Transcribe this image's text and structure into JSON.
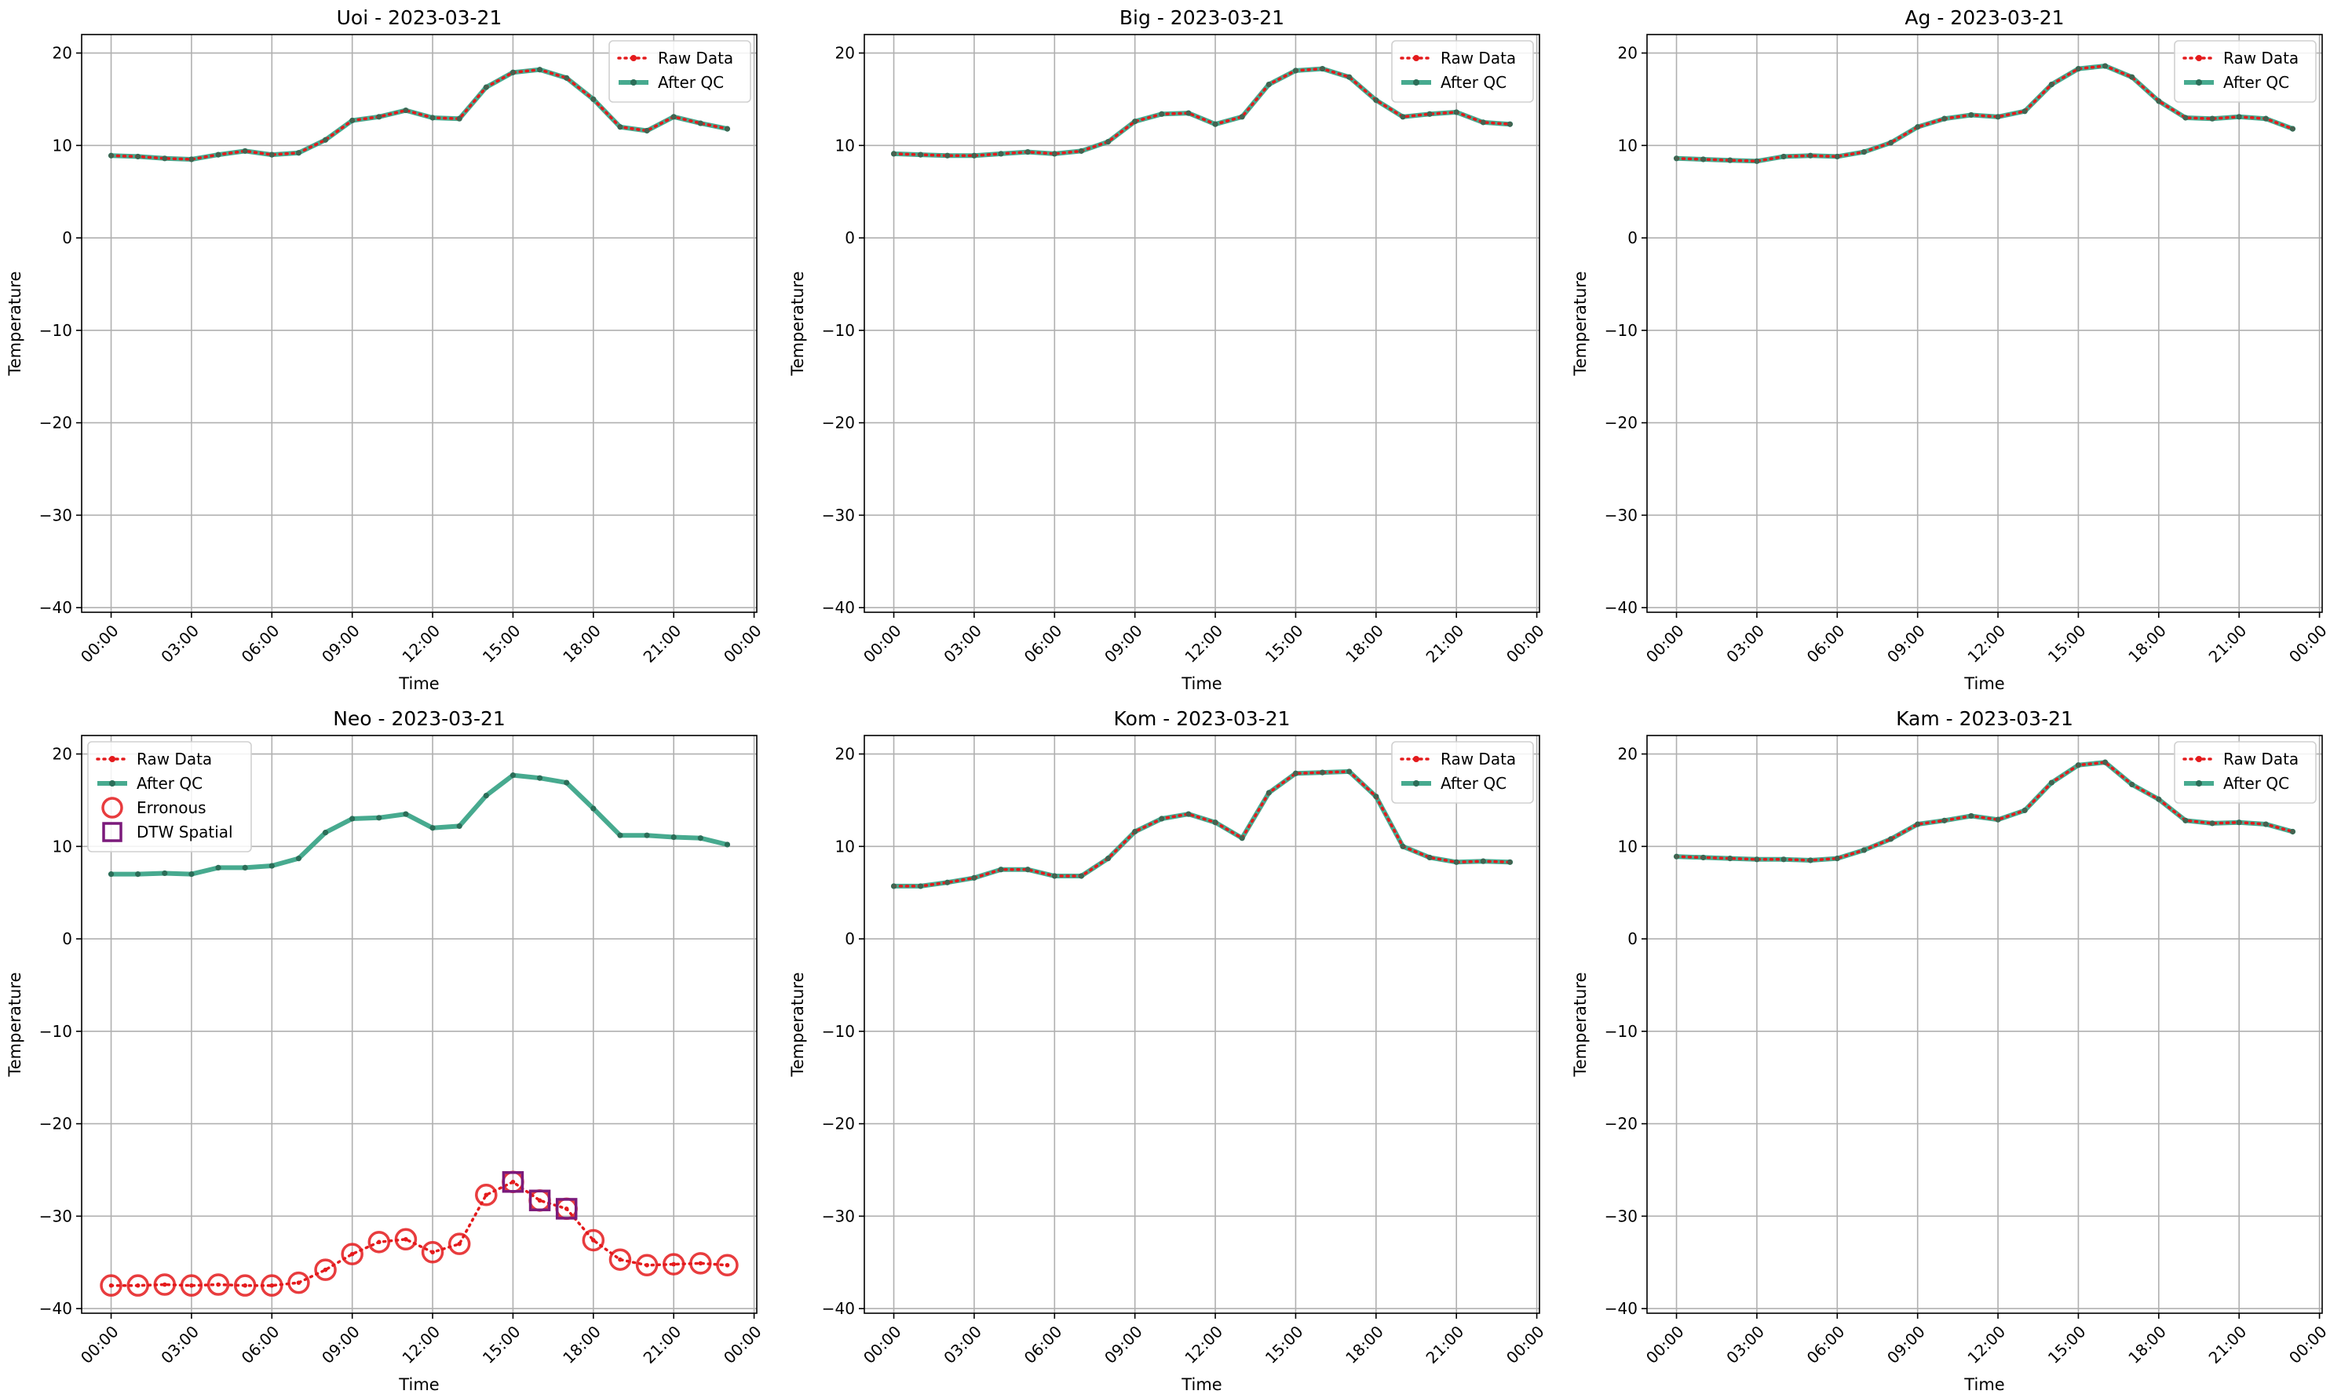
{
  "figure": {
    "background": "#ffffff",
    "colors": {
      "raw": "#e41a1c",
      "qc": "#2e9e80",
      "qc_marker": "#2b6e58",
      "erroneous": "#e41a1c",
      "dtw": "#7b1a7b",
      "grid": "#b0b0b0"
    }
  },
  "chart_data": [
    {
      "type": "line",
      "title": "Uoi - 2023-03-21",
      "xlabel": "Time",
      "ylabel": "Temperature",
      "x_ticks": [
        "00:00",
        "03:00",
        "06:00",
        "09:00",
        "12:00",
        "15:00",
        "18:00",
        "21:00",
        "00:00"
      ],
      "y_ticks": [
        20,
        10,
        0,
        -10,
        -20,
        -30,
        -40
      ],
      "ylim": [
        -40.5,
        22
      ],
      "grid": true,
      "legend": {
        "position": "top-right",
        "entries": [
          "Raw Data",
          "After QC"
        ]
      },
      "series": [
        {
          "name": "Raw Data",
          "style": "dotted",
          "values": [
            8.9,
            8.8,
            8.6,
            8.5,
            9.0,
            9.4,
            9.0,
            9.2,
            10.6,
            12.7,
            13.1,
            13.8,
            13.0,
            12.9,
            16.3,
            17.9,
            18.2,
            17.3,
            15.0,
            12.0,
            11.6,
            13.1,
            12.4,
            11.8
          ]
        },
        {
          "name": "After QC",
          "style": "solid",
          "values": [
            8.9,
            8.8,
            8.6,
            8.5,
            9.0,
            9.4,
            9.0,
            9.2,
            10.6,
            12.7,
            13.1,
            13.8,
            13.0,
            12.9,
            16.3,
            17.9,
            18.2,
            17.3,
            15.0,
            12.0,
            11.6,
            13.1,
            12.4,
            11.8
          ]
        }
      ]
    },
    {
      "type": "line",
      "title": "Big - 2023-03-21",
      "xlabel": "Time",
      "ylabel": "Temperature",
      "x_ticks": [
        "00:00",
        "03:00",
        "06:00",
        "09:00",
        "12:00",
        "15:00",
        "18:00",
        "21:00",
        "00:00"
      ],
      "y_ticks": [
        20,
        10,
        0,
        -10,
        -20,
        -30,
        -40
      ],
      "ylim": [
        -40.5,
        22
      ],
      "grid": true,
      "legend": {
        "position": "top-right",
        "entries": [
          "Raw Data",
          "After QC"
        ]
      },
      "series": [
        {
          "name": "Raw Data",
          "style": "dotted",
          "values": [
            9.1,
            9.0,
            8.9,
            8.9,
            9.1,
            9.3,
            9.1,
            9.4,
            10.4,
            12.6,
            13.4,
            13.5,
            12.3,
            13.1,
            16.6,
            18.1,
            18.3,
            17.4,
            14.9,
            13.1,
            13.4,
            13.6,
            12.5,
            12.3
          ]
        },
        {
          "name": "After QC",
          "style": "solid",
          "values": [
            9.1,
            9.0,
            8.9,
            8.9,
            9.1,
            9.3,
            9.1,
            9.4,
            10.4,
            12.6,
            13.4,
            13.5,
            12.3,
            13.1,
            16.6,
            18.1,
            18.3,
            17.4,
            14.9,
            13.1,
            13.4,
            13.6,
            12.5,
            12.3
          ]
        }
      ]
    },
    {
      "type": "line",
      "title": "Ag - 2023-03-21",
      "xlabel": "Time",
      "ylabel": "Temperature",
      "x_ticks": [
        "00:00",
        "03:00",
        "06:00",
        "09:00",
        "12:00",
        "15:00",
        "18:00",
        "21:00",
        "00:00"
      ],
      "y_ticks": [
        20,
        10,
        0,
        -10,
        -20,
        -30,
        -40
      ],
      "ylim": [
        -40.5,
        22
      ],
      "grid": true,
      "legend": {
        "position": "top-right",
        "entries": [
          "Raw Data",
          "After QC"
        ]
      },
      "series": [
        {
          "name": "Raw Data",
          "style": "dotted",
          "values": [
            8.6,
            8.5,
            8.4,
            8.3,
            8.8,
            8.9,
            8.8,
            9.3,
            10.3,
            12.0,
            12.9,
            13.3,
            13.1,
            13.7,
            16.6,
            18.3,
            18.6,
            17.4,
            14.8,
            13.0,
            12.9,
            13.1,
            12.9,
            11.8
          ]
        },
        {
          "name": "After QC",
          "style": "solid",
          "values": [
            8.6,
            8.5,
            8.4,
            8.3,
            8.8,
            8.9,
            8.8,
            9.3,
            10.3,
            12.0,
            12.9,
            13.3,
            13.1,
            13.7,
            16.6,
            18.3,
            18.6,
            17.4,
            14.8,
            13.0,
            12.9,
            13.1,
            12.9,
            11.8
          ]
        }
      ]
    },
    {
      "type": "line",
      "title": "Neo - 2023-03-21",
      "xlabel": "Time",
      "ylabel": "Temperature",
      "x_ticks": [
        "00:00",
        "03:00",
        "06:00",
        "09:00",
        "12:00",
        "15:00",
        "18:00",
        "21:00",
        "00:00"
      ],
      "y_ticks": [
        20,
        10,
        0,
        -10,
        -20,
        -30,
        -40
      ],
      "ylim": [
        -40.5,
        22
      ],
      "grid": true,
      "legend": {
        "position": "top-left",
        "entries": [
          "Raw Data",
          "After QC",
          "Erronous",
          "DTW Spatial"
        ]
      },
      "series": [
        {
          "name": "Raw Data",
          "style": "dotted",
          "values": [
            -37.5,
            -37.5,
            -37.4,
            -37.5,
            -37.4,
            -37.5,
            -37.5,
            -37.2,
            -35.8,
            -34.1,
            -32.8,
            -32.5,
            -33.9,
            -33.0,
            -27.7,
            -26.3,
            -28.3,
            -29.2,
            -32.6,
            -34.7,
            -35.3,
            -35.2,
            -35.1,
            -35.3
          ]
        },
        {
          "name": "After QC",
          "style": "solid",
          "values": [
            7.0,
            7.0,
            7.1,
            7.0,
            7.7,
            7.7,
            7.9,
            8.7,
            11.5,
            13.0,
            13.1,
            13.5,
            12.0,
            12.2,
            15.5,
            17.7,
            17.4,
            16.9,
            14.1,
            11.2,
            11.2,
            11.0,
            10.9,
            10.2
          ]
        },
        {
          "name": "Erronous",
          "style": "circle",
          "indices": [
            0,
            1,
            2,
            3,
            4,
            5,
            6,
            7,
            8,
            9,
            10,
            11,
            12,
            13,
            14,
            15,
            16,
            17,
            18,
            19,
            20,
            21,
            22,
            23
          ]
        },
        {
          "name": "DTW Spatial",
          "style": "square",
          "indices": [
            15,
            16,
            17
          ]
        }
      ]
    },
    {
      "type": "line",
      "title": "Kom - 2023-03-21",
      "xlabel": "Time",
      "ylabel": "Temperature",
      "x_ticks": [
        "00:00",
        "03:00",
        "06:00",
        "09:00",
        "12:00",
        "15:00",
        "18:00",
        "21:00",
        "00:00"
      ],
      "y_ticks": [
        20,
        10,
        0,
        -10,
        -20,
        -30,
        -40
      ],
      "ylim": [
        -40.5,
        22
      ],
      "grid": true,
      "legend": {
        "position": "top-right",
        "entries": [
          "Raw Data",
          "After QC"
        ]
      },
      "series": [
        {
          "name": "Raw Data",
          "style": "dotted",
          "values": [
            5.7,
            5.7,
            6.1,
            6.6,
            7.5,
            7.5,
            6.8,
            6.8,
            8.7,
            11.6,
            13.0,
            13.5,
            12.6,
            10.9,
            15.8,
            17.9,
            18.0,
            18.1,
            15.4,
            10.0,
            8.8,
            8.3,
            8.4,
            8.3
          ]
        },
        {
          "name": "After QC",
          "style": "solid",
          "values": [
            5.7,
            5.7,
            6.1,
            6.6,
            7.5,
            7.5,
            6.8,
            6.8,
            8.7,
            11.6,
            13.0,
            13.5,
            12.6,
            10.9,
            15.8,
            17.9,
            18.0,
            18.1,
            15.4,
            10.0,
            8.8,
            8.3,
            8.4,
            8.3
          ]
        }
      ]
    },
    {
      "type": "line",
      "title": "Kam - 2023-03-21",
      "xlabel": "Time",
      "ylabel": "Temperature",
      "x_ticks": [
        "00:00",
        "03:00",
        "06:00",
        "09:00",
        "12:00",
        "15:00",
        "18:00",
        "21:00",
        "00:00"
      ],
      "y_ticks": [
        20,
        10,
        0,
        -10,
        -20,
        -30,
        -40
      ],
      "ylim": [
        -40.5,
        22
      ],
      "grid": true,
      "legend": {
        "position": "top-right",
        "entries": [
          "Raw Data",
          "After QC"
        ]
      },
      "series": [
        {
          "name": "Raw Data",
          "style": "dotted",
          "values": [
            8.9,
            8.8,
            8.7,
            8.6,
            8.6,
            8.5,
            8.7,
            9.6,
            10.8,
            12.4,
            12.8,
            13.3,
            12.9,
            13.9,
            16.9,
            18.8,
            19.1,
            16.7,
            15.1,
            12.8,
            12.5,
            12.6,
            12.4,
            11.6
          ]
        },
        {
          "name": "After QC",
          "style": "solid",
          "values": [
            8.9,
            8.8,
            8.7,
            8.6,
            8.6,
            8.5,
            8.7,
            9.6,
            10.8,
            12.4,
            12.8,
            13.3,
            12.9,
            13.9,
            16.9,
            18.8,
            19.1,
            16.7,
            15.1,
            12.8,
            12.5,
            12.6,
            12.4,
            11.6
          ]
        }
      ]
    }
  ]
}
